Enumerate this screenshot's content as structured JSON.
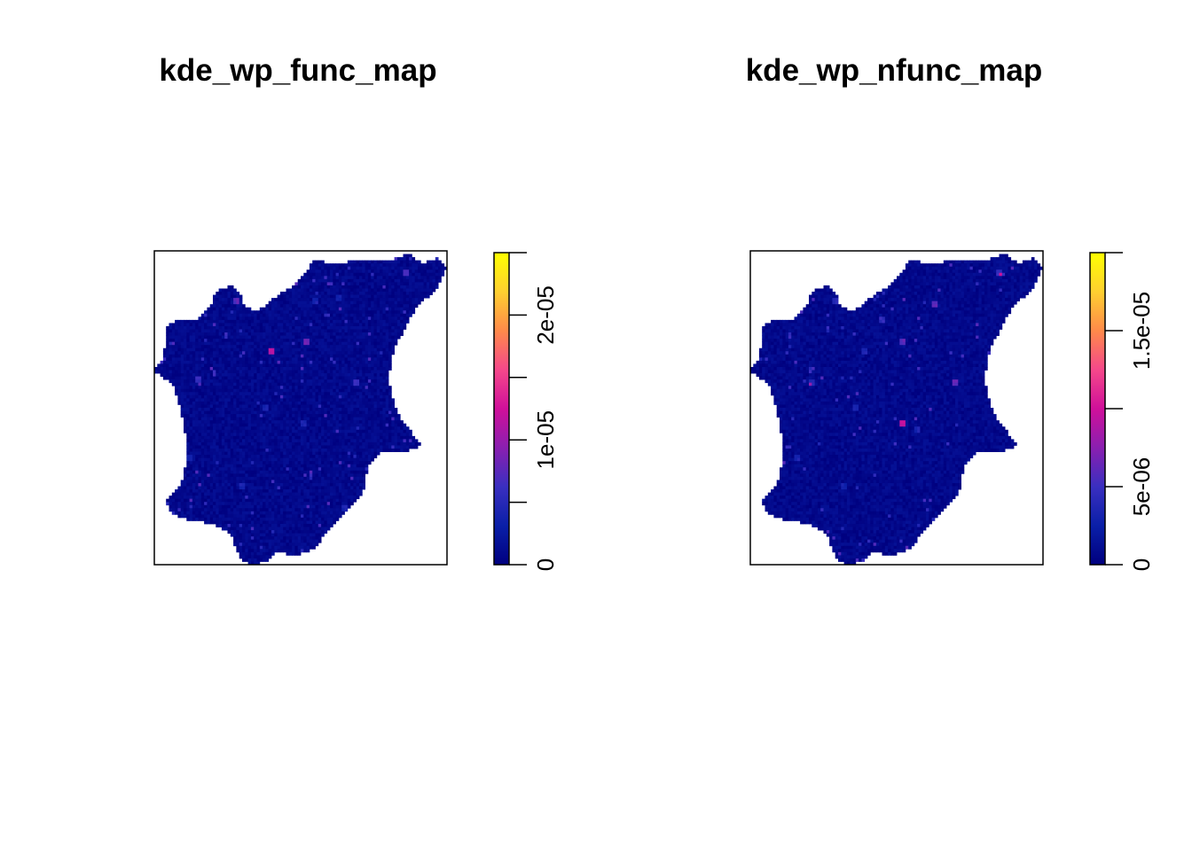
{
  "chart_data": [
    {
      "type": "heatmap",
      "title": "kde_wp_func_map",
      "axes_shown": false,
      "colorbar": {
        "palette": [
          "#00007f",
          "#0a1fa8",
          "#3a2fc0",
          "#8a1fb0",
          "#d0109a",
          "#f5488a",
          "#ff8a4a",
          "#ffd030",
          "#ffff00"
        ],
        "range": [
          0,
          2.5e-05
        ],
        "ticks": [
          0,
          5e-06,
          1e-05,
          1.5e-05,
          2e-05,
          2.5e-05
        ],
        "tick_labels": [
          "0",
          "1e-05",
          "2e-05"
        ],
        "labeled_ticks": [
          0,
          1e-05,
          2e-05
        ]
      },
      "hotspots": [
        [
          0.28,
          0.16,
          0.6
        ],
        [
          0.4,
          0.32,
          1.0
        ],
        [
          0.52,
          0.29,
          0.7
        ],
        [
          0.69,
          0.42,
          0.5
        ],
        [
          0.86,
          0.07,
          0.5
        ],
        [
          0.15,
          0.41,
          0.45
        ],
        [
          0.38,
          0.5,
          0.3
        ],
        [
          0.51,
          0.55,
          0.35
        ],
        [
          0.63,
          0.15,
          0.3
        ],
        [
          0.12,
          0.66,
          0.25
        ],
        [
          0.3,
          0.75,
          0.3
        ],
        [
          0.65,
          0.82,
          0.3
        ],
        [
          0.55,
          0.16,
          0.3
        ]
      ]
    },
    {
      "type": "heatmap",
      "title": "kde_wp_nfunc_map",
      "axes_shown": false,
      "colorbar": {
        "palette": [
          "#00007f",
          "#0a1fa8",
          "#3a2fc0",
          "#8a1fb0",
          "#d0109a",
          "#f5488a",
          "#ff8a4a",
          "#ffd030",
          "#ffff00"
        ],
        "range": [
          0,
          2e-05
        ],
        "ticks": [
          0,
          5e-06,
          1e-05,
          1.5e-05,
          2e-05
        ],
        "tick_labels": [
          "0",
          "5e-06",
          "1.5e-05"
        ],
        "labeled_ticks": [
          0,
          5e-06,
          1.5e-05
        ]
      },
      "hotspots": [
        [
          0.52,
          0.55,
          1.0
        ],
        [
          0.52,
          0.29,
          0.6
        ],
        [
          0.63,
          0.17,
          0.6
        ],
        [
          0.7,
          0.42,
          0.6
        ],
        [
          0.45,
          0.22,
          0.45
        ],
        [
          0.29,
          0.16,
          0.4
        ],
        [
          0.21,
          0.42,
          0.4
        ],
        [
          0.36,
          0.5,
          0.35
        ],
        [
          0.16,
          0.66,
          0.3
        ],
        [
          0.57,
          0.57,
          0.3
        ],
        [
          0.85,
          0.07,
          0.5
        ],
        [
          0.39,
          0.32,
          0.3
        ],
        [
          0.32,
          0.75,
          0.25
        ]
      ]
    }
  ]
}
